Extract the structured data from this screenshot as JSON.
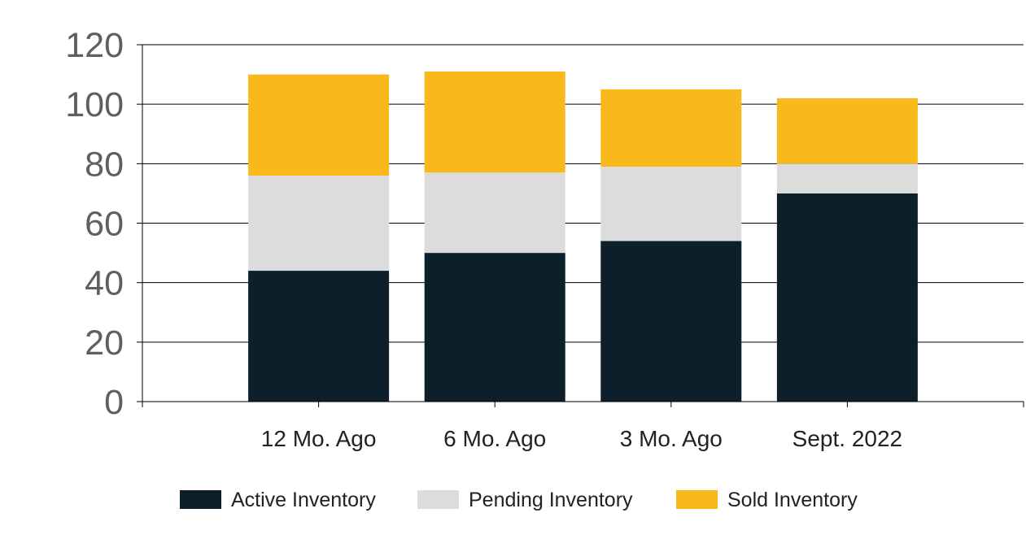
{
  "chart_data": {
    "type": "bar",
    "stacked": true,
    "title": "",
    "xlabel": "",
    "ylabel": "",
    "categories": [
      "12 Mo. Ago",
      "6 Mo. Ago",
      "3 Mo. Ago",
      "Sept. 2022"
    ],
    "series": [
      {
        "name": "Active Inventory",
        "color": "#0c1f2b",
        "values": [
          44,
          50,
          54,
          70
        ]
      },
      {
        "name": "Pending Inventory",
        "color": "#dcdcdc",
        "values": [
          32,
          27,
          25,
          10
        ]
      },
      {
        "name": "Sold Inventory",
        "color": "#f9b81b",
        "values": [
          34,
          34,
          26,
          22
        ]
      }
    ],
    "ylim": [
      0,
      120
    ],
    "yticks": [
      0,
      20,
      40,
      60,
      80,
      100,
      120
    ],
    "grid": true,
    "legend_position": "bottom"
  }
}
